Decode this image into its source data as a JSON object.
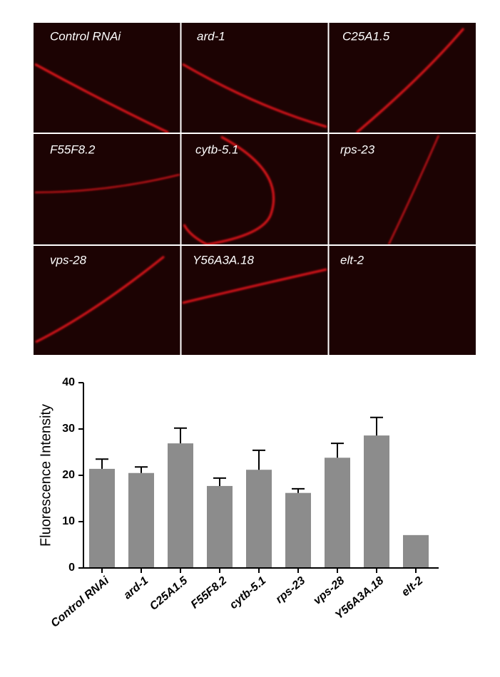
{
  "image_panels": {
    "labels": [
      "Control RNAi",
      "ard-1",
      "C25A1.5",
      "F55F8.2",
      "cytb-5.1",
      "rps-23",
      "vps-28",
      "Y56A3A.18",
      "elt-2"
    ]
  },
  "chart_data": {
    "type": "bar",
    "ylabel": "Fluorescence Intensity",
    "categories": [
      "Control RNAi",
      "ard-1",
      "C25A1.5",
      "F55F8.2",
      "cytb-5.1",
      "rps-23",
      "vps-28",
      "Y56A3A.18",
      "elt-2"
    ],
    "values": [
      21.4,
      20.5,
      26.9,
      17.7,
      21.2,
      16.2,
      23.8,
      28.6,
      7.1
    ],
    "errors": [
      2.1,
      1.3,
      3.3,
      1.7,
      4.2,
      0.9,
      3.1,
      3.9,
      null
    ],
    "color": "#8c8c8c",
    "ylim": [
      0,
      40
    ],
    "yticks": [
      0,
      10,
      20,
      30,
      40
    ]
  }
}
